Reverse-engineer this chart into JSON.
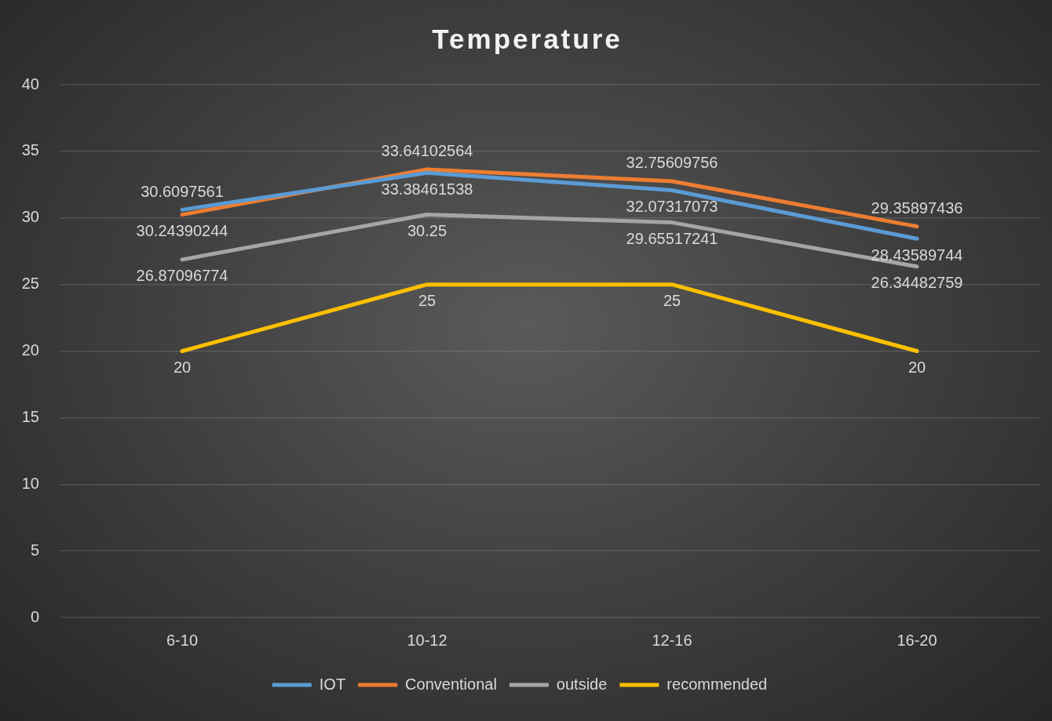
{
  "chart_data": {
    "type": "line",
    "title": "Temperature",
    "categories": [
      "6-10",
      "10-12",
      "12-16",
      "16-20"
    ],
    "series": [
      {
        "name": "IOT",
        "color": "#5b9bd5",
        "values": [
          30.6097561,
          33.38461538,
          32.07317073,
          28.43589744
        ]
      },
      {
        "name": "Conventional",
        "color": "#ed7d31",
        "values": [
          30.24390244,
          33.64102564,
          32.75609756,
          29.35897436
        ]
      },
      {
        "name": "outside",
        "color": "#a5a5a5",
        "values": [
          26.87096774,
          30.25,
          29.65517241,
          26.34482759
        ]
      },
      {
        "name": "recommended",
        "color": "#ffc000",
        "values": [
          20,
          25,
          25,
          20
        ]
      }
    ],
    "ylim": [
      0,
      40
    ],
    "yticks": [
      0,
      5,
      10,
      15,
      20,
      25,
      30,
      35,
      40
    ],
    "grid": "y",
    "legend": "bottom",
    "data_labels": true,
    "marker": "none",
    "line_style": "solid"
  }
}
